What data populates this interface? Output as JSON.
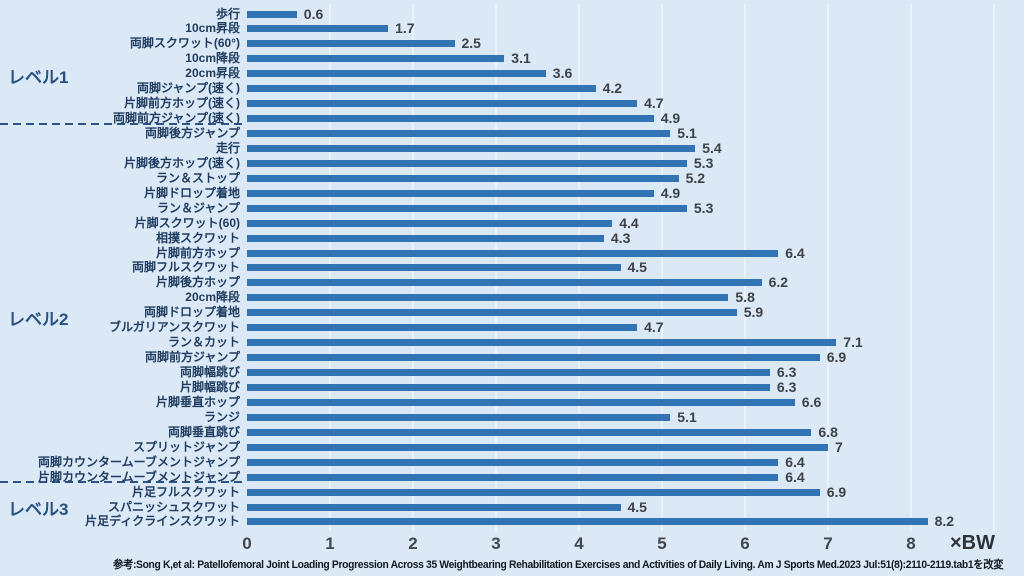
{
  "chart_data": {
    "type": "bar",
    "orientation": "horizontal",
    "title": "",
    "xlabel": "",
    "ylabel": "",
    "xlim": [
      0,
      9
    ],
    "x_ticks": [
      "0",
      "1",
      "2",
      "3",
      "4",
      "5",
      "6",
      "7",
      "8"
    ],
    "unit_label": "×BW",
    "grid": "vertical",
    "bar_color": "#3273b4",
    "background_color": "#dbe8f5",
    "categories": [
      "歩行",
      "10cm昇段",
      "両脚スクワット(60°)",
      "10cm降段",
      "20cm昇段",
      "両脚ジャンプ(速く)",
      "片脚前方ホップ(速く)",
      "両脚前方ジャンプ(速く)",
      "両脚後方ジャンプ",
      "走行",
      "片脚後方ホップ(速く)",
      "ラン＆ストップ",
      "片脚ドロップ着地",
      "ラン＆ジャンプ",
      "片脚スクワット(60)",
      "相撲スクワット",
      "片脚前方ホップ",
      "両脚フルスクワット",
      "片脚後方ホップ",
      "20cm降段",
      "両脚ドロップ着地",
      "ブルガリアンスクワット",
      "ラン＆カット",
      "両脚前方ジャンプ",
      "両脚幅跳び",
      "片脚幅跳び",
      "片脚垂直ホップ",
      "ランジ",
      "両脚垂直跳び",
      "スプリットジャンプ",
      "両脚カウンタームーブメントジャンプ",
      "片脚カウンタームーブメントジャンプ",
      "片足フルスクワット",
      "スパニッシュスクワット",
      "片足ディクラインスクワット"
    ],
    "values": [
      0.6,
      1.7,
      2.5,
      3.1,
      3.6,
      4.2,
      4.7,
      4.9,
      5.1,
      5.4,
      5.3,
      5.2,
      4.9,
      5.3,
      4.4,
      4.3,
      6.4,
      4.5,
      6.2,
      5.8,
      5.9,
      4.7,
      7.1,
      6.9,
      6.3,
      6.3,
      6.6,
      5.1,
      6.8,
      7,
      6.4,
      6.4,
      6.9,
      4.5,
      8.2
    ],
    "value_labels": [
      "0.6",
      "1.7",
      "2.5",
      "3.1",
      "3.6",
      "4.2",
      "4.7",
      "4.9",
      "5.1",
      "5.4",
      "5.3",
      "5.2",
      "4.9",
      "5.3",
      "4.4",
      "4.3",
      "6.4",
      "4.5",
      "6.2",
      "5.8",
      "5.9",
      "4.7",
      "7.1",
      "6.9",
      "6.3",
      "6.3",
      "6.6",
      "5.1",
      "6.8",
      "7",
      "6.4",
      "6.4",
      "6.9",
      "4.5",
      "8.2"
    ],
    "levels": [
      {
        "label": "レベル1",
        "center_row": 3.9
      },
      {
        "label": "レベル2",
        "center_row": 20.1
      },
      {
        "label": "レベル3",
        "center_row": 32.8
      }
    ],
    "dashed_separators_after_row": [
      7,
      31
    ],
    "caption": "参考:Song K,et al: Patellofemoral Joint Loading Progression Across 35 Weightbearing Rehabilitation Exercises and Activities of Daily Living. Am J Sports Med.2023 Jul:51(8):2110-2119.tab1を改変"
  }
}
